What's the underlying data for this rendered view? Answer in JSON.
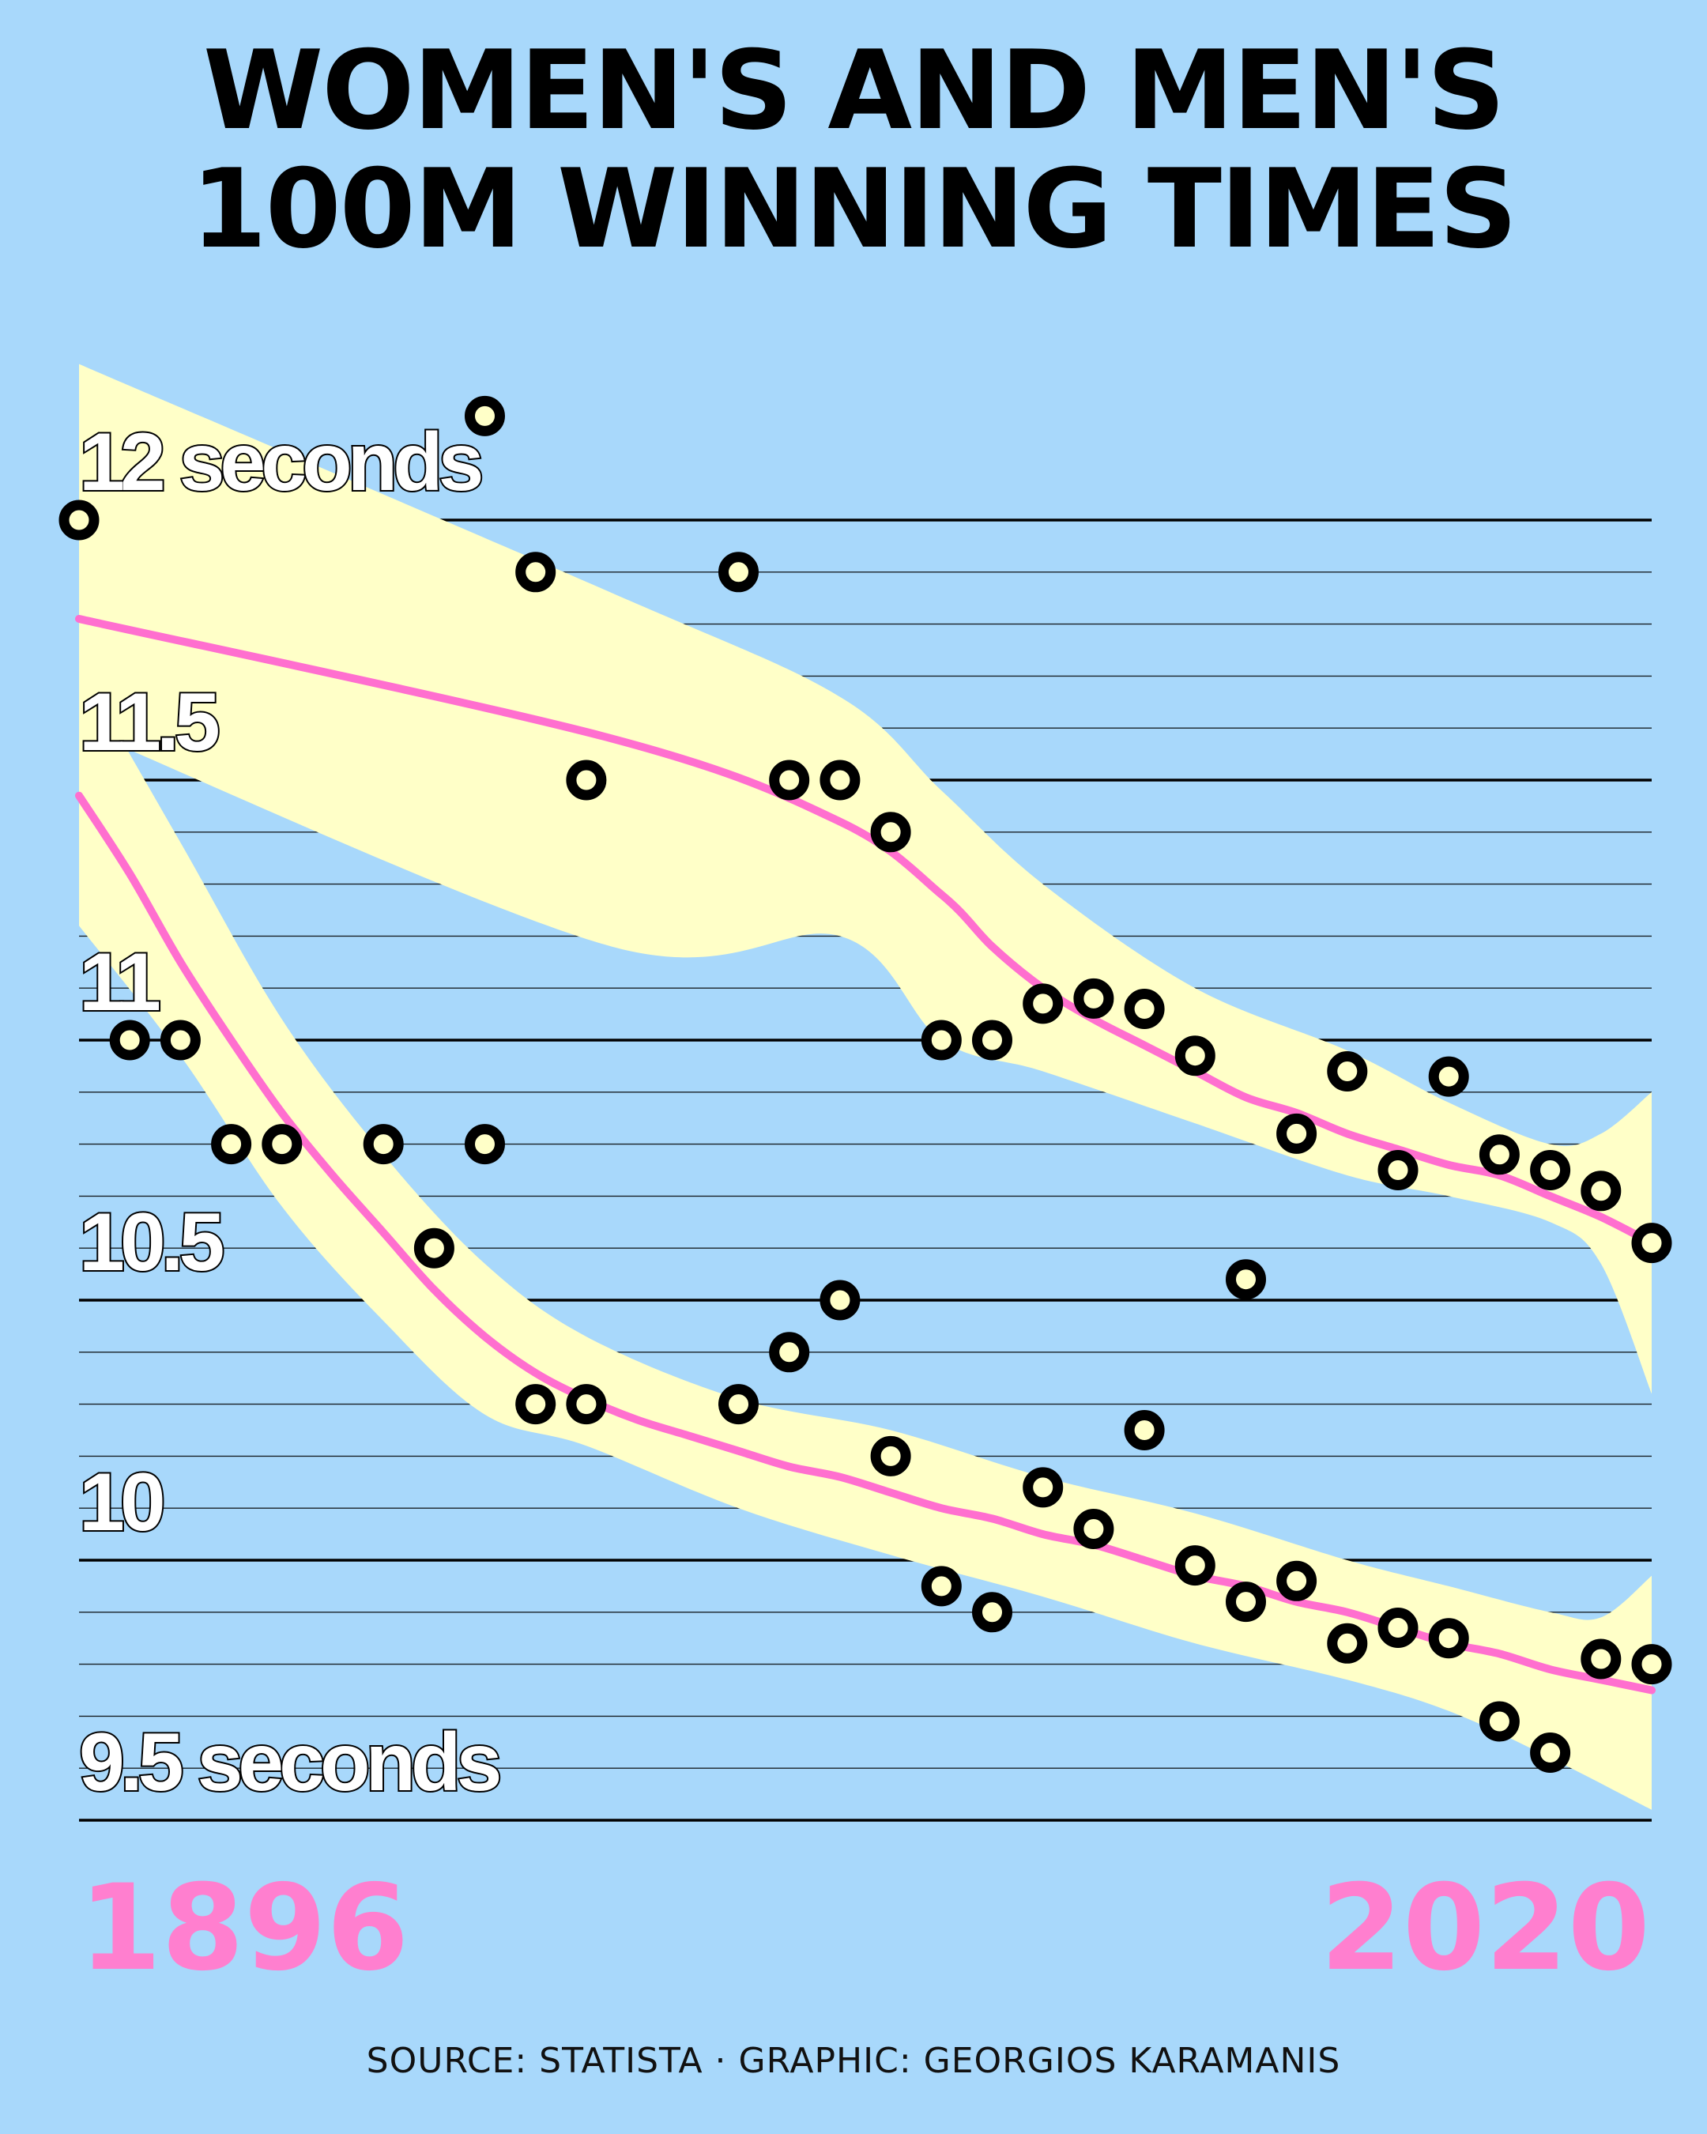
{
  "title": [
    "WOMEN'S AND MEN'S",
    "100M WINNING TIMES"
  ],
  "source": "SOURCE: STATISTA · GRAPHIC: GEORGIOS KARAMANIS",
  "colors": {
    "background": "#a8d8fb",
    "band": "#ffffc8",
    "trend": "#ff6fcf",
    "marker": "#000000",
    "year_text": "#ff7fcf"
  },
  "chart_data": {
    "type": "scatter",
    "title": "WOMEN'S AND MEN'S 100M WINNING TIMES",
    "x_range": [
      1896,
      2020
    ],
    "ylim": [
      9.5,
      12.0
    ],
    "y_ticks": [
      {
        "value": 12,
        "label": "12 seconds"
      },
      {
        "value": 11.5,
        "label": "11.5"
      },
      {
        "value": 11,
        "label": "11"
      },
      {
        "value": 10.5,
        "label": "10.5"
      },
      {
        "value": 10,
        "label": "10"
      },
      {
        "value": 9.5,
        "label": "9.5 seconds"
      }
    ],
    "x_tick_labels": [
      "1896",
      "2020"
    ],
    "grid": true,
    "series": [
      {
        "points": [
          [
            1928,
            12.2
          ],
          [
            1932,
            11.9
          ],
          [
            1936,
            11.5
          ],
          [
            1948,
            11.9
          ],
          [
            1952,
            11.5
          ],
          [
            1956,
            11.5
          ],
          [
            1960,
            11.4
          ],
          [
            1964,
            11.0
          ],
          [
            1968,
            11.0
          ],
          [
            1972,
            11.07
          ],
          [
            1976,
            11.08
          ],
          [
            1980,
            11.06
          ],
          [
            1984,
            10.97
          ],
          [
            1988,
            10.54
          ],
          [
            1992,
            10.82
          ],
          [
            1996,
            10.94
          ],
          [
            2000,
            10.75
          ],
          [
            2004,
            10.93
          ],
          [
            2008,
            10.78
          ],
          [
            2012,
            10.75
          ],
          [
            2016,
            10.71
          ],
          [
            2020,
            10.61
          ]
        ],
        "trend": [
          [
            1896,
            11.81
          ],
          [
            1938,
            11.58
          ],
          [
            1956,
            11.42
          ],
          [
            1964,
            11.28
          ],
          [
            1968,
            11.18
          ],
          [
            1972,
            11.1
          ],
          [
            1976,
            11.04
          ],
          [
            1980,
            10.99
          ],
          [
            1984,
            10.94
          ],
          [
            1988,
            10.89
          ],
          [
            1992,
            10.86
          ],
          [
            1996,
            10.82
          ],
          [
            2000,
            10.79
          ],
          [
            2004,
            10.76
          ],
          [
            2008,
            10.74
          ],
          [
            2012,
            10.7
          ],
          [
            2016,
            10.66
          ],
          [
            2020,
            10.61
          ]
        ],
        "band_lower": [
          [
            1896,
            11.6
          ],
          [
            1938,
            11.18
          ],
          [
            1956,
            11.2
          ],
          [
            1964,
            11.0
          ],
          [
            1972,
            10.94
          ],
          [
            1984,
            10.84
          ],
          [
            1996,
            10.74
          ],
          [
            2004,
            10.7
          ],
          [
            2012,
            10.65
          ],
          [
            2016,
            10.57
          ],
          [
            2020,
            10.32
          ]
        ],
        "band_upper": [
          [
            1896,
            12.3
          ],
          [
            1938,
            11.86
          ],
          [
            1956,
            11.66
          ],
          [
            1964,
            11.48
          ],
          [
            1972,
            11.3
          ],
          [
            1984,
            11.1
          ],
          [
            1996,
            10.98
          ],
          [
            2004,
            10.88
          ],
          [
            2012,
            10.8
          ],
          [
            2016,
            10.82
          ],
          [
            2020,
            10.9
          ]
        ]
      },
      {
        "points": [
          [
            1896,
            12.0
          ],
          [
            1900,
            11.0
          ],
          [
            1904,
            11.0
          ],
          [
            1908,
            10.8
          ],
          [
            1912,
            10.8
          ],
          [
            1920,
            10.8
          ],
          [
            1924,
            10.6
          ],
          [
            1928,
            10.8
          ],
          [
            1932,
            10.3
          ],
          [
            1936,
            10.3
          ],
          [
            1948,
            10.3
          ],
          [
            1952,
            10.4
          ],
          [
            1956,
            10.5
          ],
          [
            1960,
            10.2
          ],
          [
            1964,
            9.95
          ],
          [
            1968,
            9.9
          ],
          [
            1972,
            10.14
          ],
          [
            1976,
            10.06
          ],
          [
            1980,
            10.25
          ],
          [
            1984,
            9.99
          ],
          [
            1988,
            9.92
          ],
          [
            1992,
            9.96
          ],
          [
            1996,
            9.84
          ],
          [
            2000,
            9.87
          ],
          [
            2004,
            9.85
          ],
          [
            2008,
            9.69
          ],
          [
            2012,
            9.63
          ],
          [
            2016,
            9.81
          ],
          [
            2020,
            9.8
          ]
        ],
        "trend": [
          [
            1896,
            11.47
          ],
          [
            1900,
            11.32
          ],
          [
            1904,
            11.15
          ],
          [
            1908,
            11.0
          ],
          [
            1912,
            10.86
          ],
          [
            1916,
            10.74
          ],
          [
            1920,
            10.63
          ],
          [
            1924,
            10.52
          ],
          [
            1928,
            10.43
          ],
          [
            1932,
            10.36
          ],
          [
            1936,
            10.31
          ],
          [
            1940,
            10.27
          ],
          [
            1944,
            10.24
          ],
          [
            1948,
            10.21
          ],
          [
            1952,
            10.18
          ],
          [
            1956,
            10.16
          ],
          [
            1960,
            10.13
          ],
          [
            1964,
            10.1
          ],
          [
            1968,
            10.08
          ],
          [
            1972,
            10.05
          ],
          [
            1976,
            10.03
          ],
          [
            1980,
            10.0
          ],
          [
            1984,
            9.97
          ],
          [
            1988,
            9.95
          ],
          [
            1992,
            9.92
          ],
          [
            1996,
            9.9
          ],
          [
            2000,
            9.87
          ],
          [
            2004,
            9.84
          ],
          [
            2008,
            9.82
          ],
          [
            2012,
            9.79
          ],
          [
            2016,
            9.77
          ],
          [
            2020,
            9.75
          ]
        ],
        "band_lower": [
          [
            1896,
            11.22
          ],
          [
            1904,
            10.97
          ],
          [
            1912,
            10.68
          ],
          [
            1920,
            10.46
          ],
          [
            1928,
            10.28
          ],
          [
            1936,
            10.22
          ],
          [
            1948,
            10.1
          ],
          [
            1960,
            10.01
          ],
          [
            1972,
            9.93
          ],
          [
            1984,
            9.84
          ],
          [
            1996,
            9.77
          ],
          [
            2004,
            9.71
          ],
          [
            2012,
            9.62
          ],
          [
            2020,
            9.52
          ]
        ],
        "band_upper": [
          [
            1896,
            11.72
          ],
          [
            1904,
            11.38
          ],
          [
            1912,
            11.04
          ],
          [
            1920,
            10.78
          ],
          [
            1928,
            10.57
          ],
          [
            1936,
            10.43
          ],
          [
            1948,
            10.31
          ],
          [
            1960,
            10.25
          ],
          [
            1972,
            10.16
          ],
          [
            1984,
            10.09
          ],
          [
            1996,
            10.0
          ],
          [
            2004,
            9.95
          ],
          [
            2012,
            9.9
          ],
          [
            2016,
            9.89
          ],
          [
            2020,
            9.97
          ]
        ]
      }
    ]
  }
}
